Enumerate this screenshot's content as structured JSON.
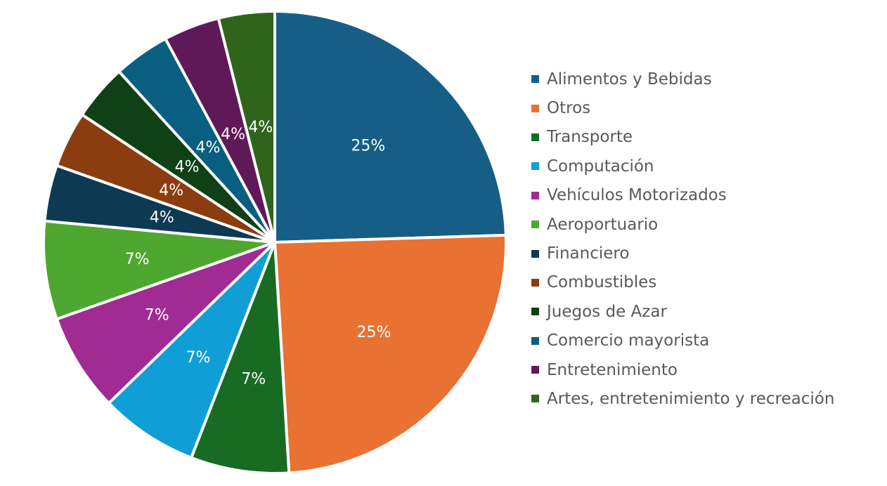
{
  "chart_data": {
    "type": "pie",
    "slices": [
      {
        "name": "Alimentos y Bebidas",
        "value": 25,
        "label": "25%",
        "color": "#165e86"
      },
      {
        "name": "Otros",
        "value": 25,
        "label": "25%",
        "color": "#e97132"
      },
      {
        "name": "Transporte",
        "value": 7,
        "label": "7%",
        "color": "#196b24"
      },
      {
        "name": "Computación",
        "value": 7,
        "label": "7%",
        "color": "#0f9ed5"
      },
      {
        "name": "Vehículos Motorizados",
        "value": 7,
        "label": "7%",
        "color": "#a02b93"
      },
      {
        "name": "Aeroportuario",
        "value": 7,
        "label": "7%",
        "color": "#4ea72e"
      },
      {
        "name": "Financiero",
        "value": 4,
        "label": "4%",
        "color": "#0d3a52"
      },
      {
        "name": "Combustibles",
        "value": 4,
        "label": "4%",
        "color": "#8c3d10"
      },
      {
        "name": "Juegos de Azar",
        "value": 4,
        "label": "4%",
        "color": "#0f4016"
      },
      {
        "name": "Comercio mayorista",
        "value": 4,
        "label": "4%",
        "color": "#095f80"
      },
      {
        "name": "Entretenimiento",
        "value": 4,
        "label": "4%",
        "color": "#601958"
      },
      {
        "name": "Artes, entretenimiento y recreación",
        "value": 4,
        "label": "4%",
        "color": "#2f641c"
      }
    ],
    "legend_position": "right"
  }
}
